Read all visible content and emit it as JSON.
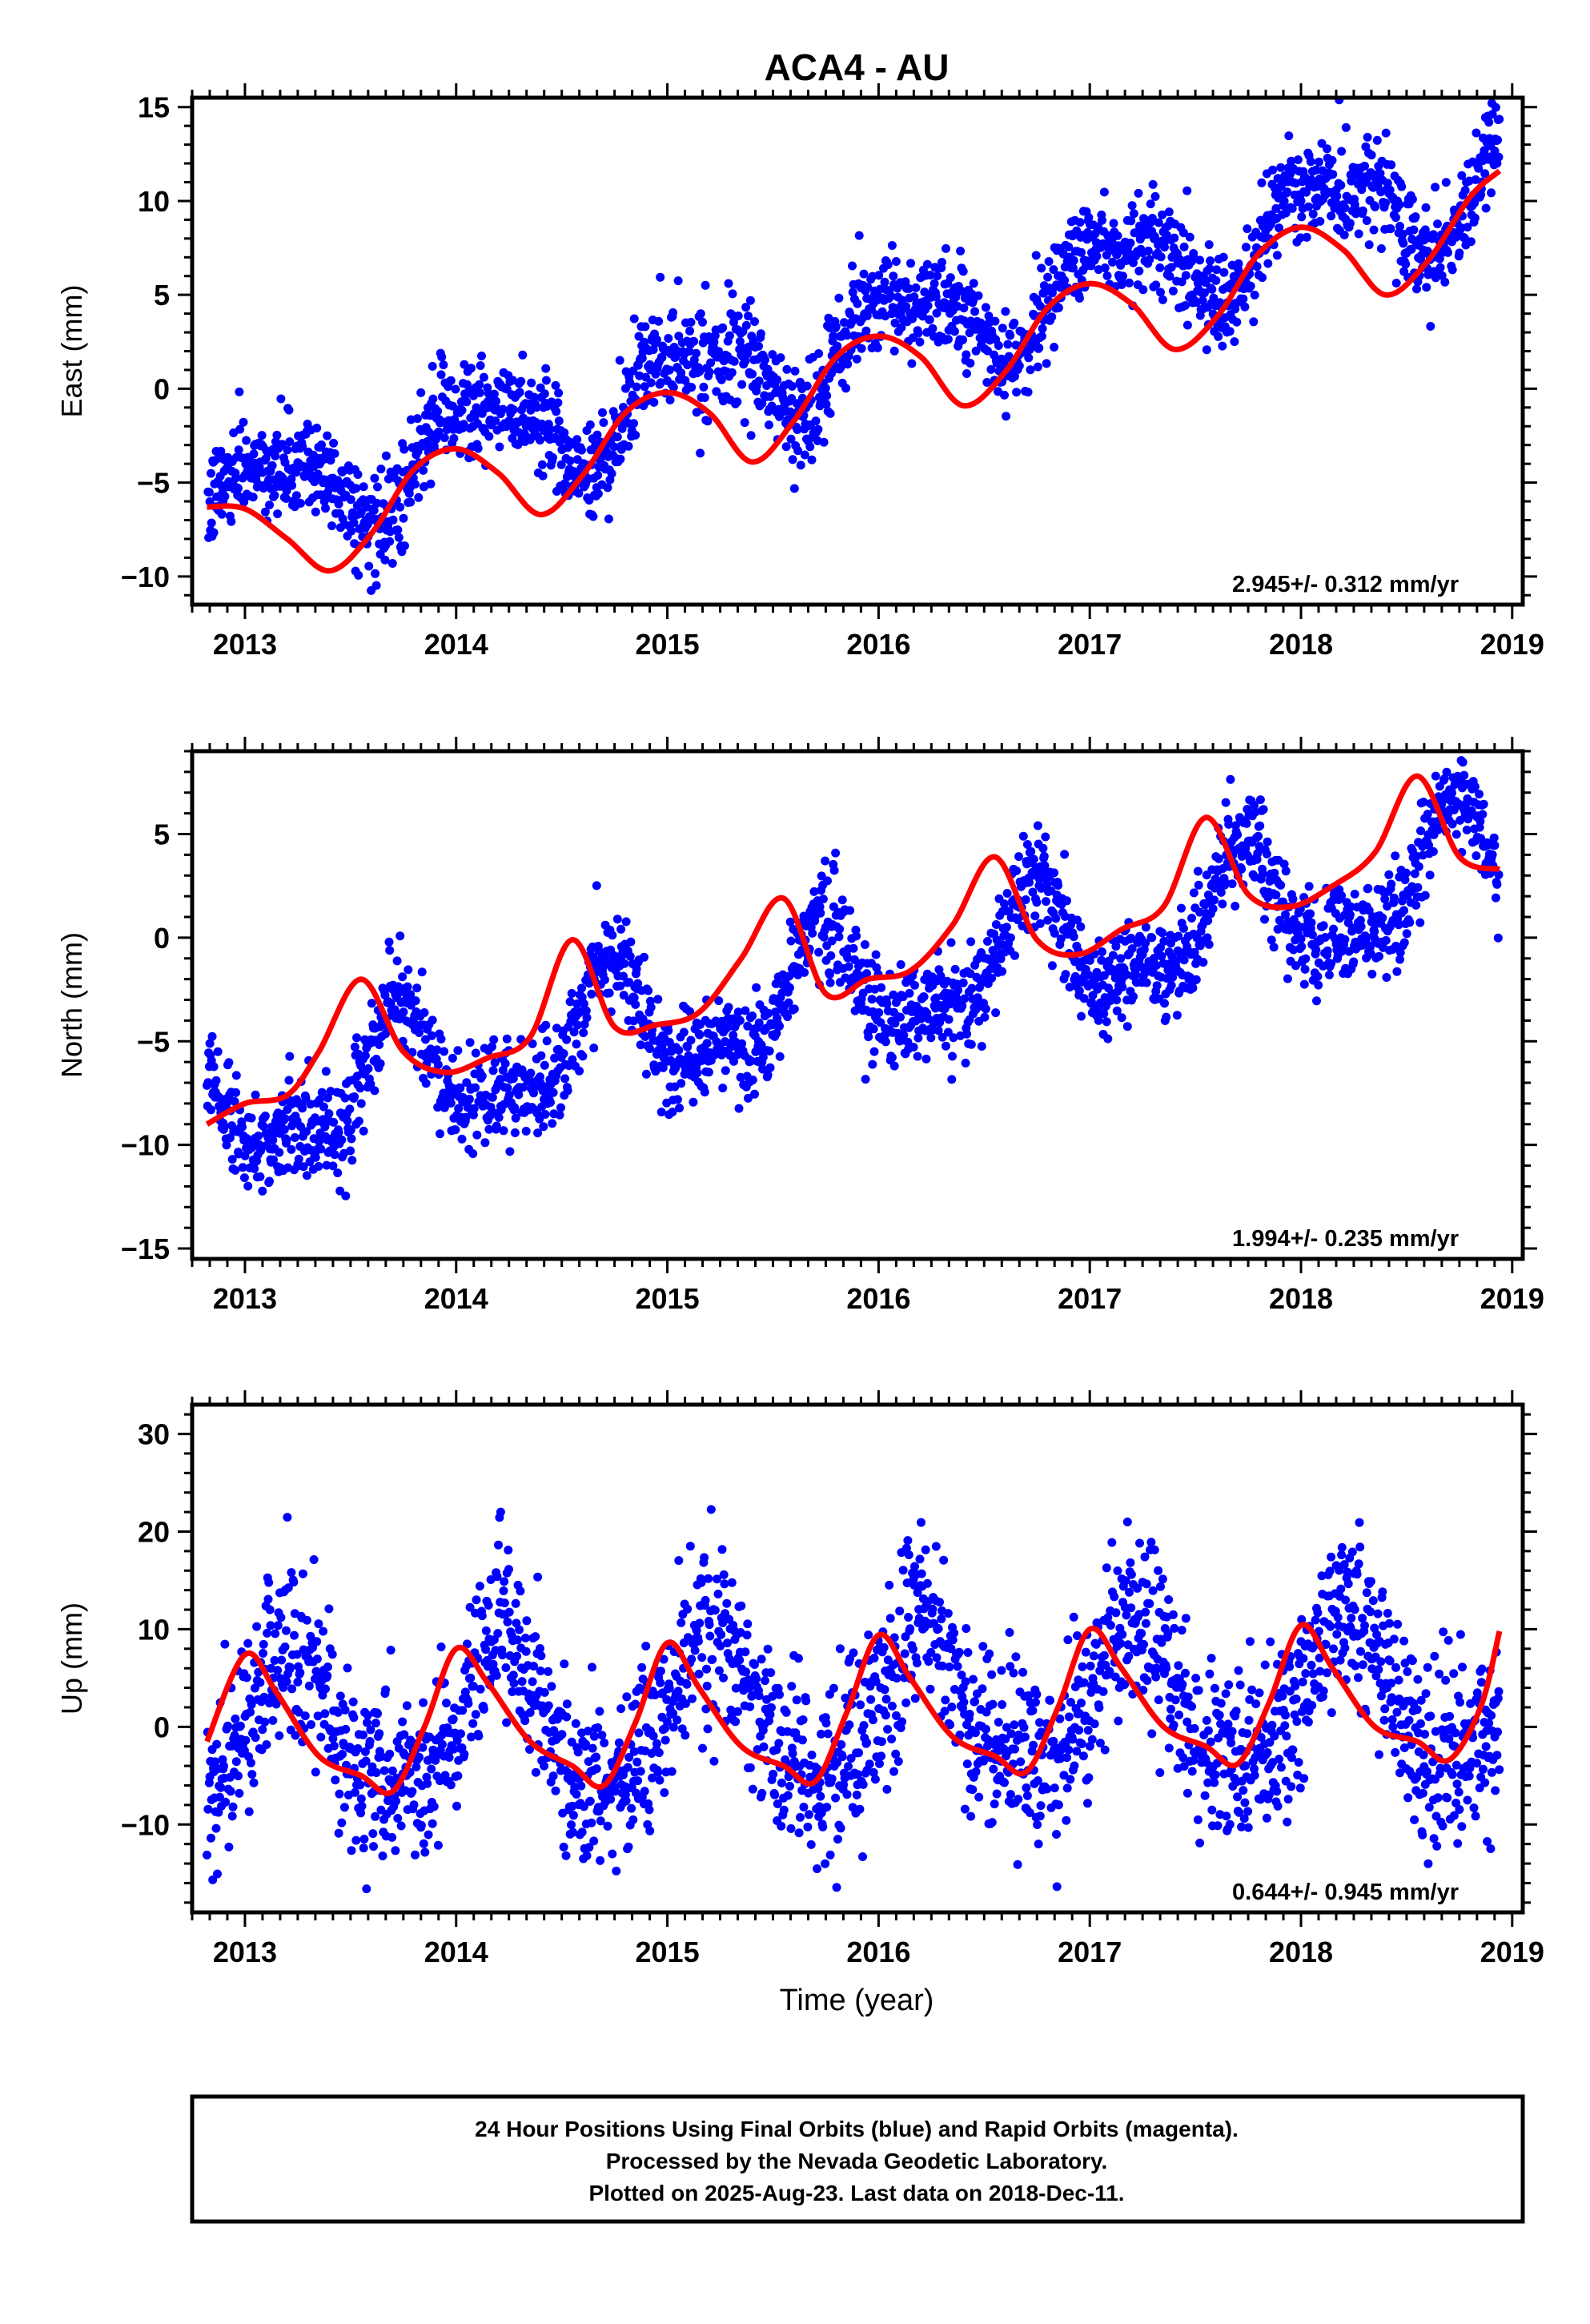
{
  "chart_data": [
    {
      "type": "scatter",
      "title": "ACA4 - AU",
      "ylabel": "East (mm)",
      "xlabel": "",
      "xlim": [
        2012.75,
        2019.05
      ],
      "ylim": [
        -11.5,
        15.5
      ],
      "xticks": [
        2013,
        2014,
        2015,
        2016,
        2017,
        2018,
        2019
      ],
      "yticks": [
        -10,
        -5,
        0,
        5,
        10,
        15
      ],
      "rate_text": "2.945+/- 0.312 mm/yr",
      "grid": false,
      "colors": {
        "points": "#0000ff",
        "model": "#ff0000"
      },
      "series": [
        {
          "kind": "points",
          "x_start": 2012.82,
          "x_end": 2018.94,
          "step_days": 1.0,
          "trend": {
            "t0": 2012.82,
            "y0": -6.6,
            "rate": 2.945
          },
          "seasonal": [
            [
              1.5,
              1.8
            ],
            [
              -0.9,
              0.3
            ]
          ],
          "noise_sd": 1.3
        },
        {
          "kind": "model",
          "x": [
            2012.82,
            2013.0,
            2013.2,
            2013.4,
            2013.6,
            2013.8,
            2014.0,
            2014.2,
            2014.4,
            2014.6,
            2014.8,
            2015.0,
            2015.2,
            2015.4,
            2015.6,
            2015.8,
            2016.0,
            2016.2,
            2016.4,
            2016.6,
            2016.8,
            2017.0,
            2017.2,
            2017.4,
            2017.6,
            2017.8,
            2018.0,
            2018.2,
            2018.4,
            2018.6,
            2018.8,
            2018.94
          ],
          "y": [
            -6.3,
            -6.4,
            -8.0,
            -9.7,
            -7.7,
            -4.3,
            -3.2,
            -4.5,
            -6.7,
            -4.6,
            -1.3,
            -0.2,
            -1.3,
            -3.9,
            -1.7,
            1.7,
            2.8,
            1.7,
            -0.9,
            0.9,
            4.3,
            5.6,
            4.5,
            2.1,
            3.8,
            7.2,
            8.6,
            7.4,
            5.0,
            6.8,
            10.2,
            11.6
          ]
        }
      ]
    },
    {
      "type": "scatter",
      "ylabel": "North (mm)",
      "xlabel": "",
      "xlim": [
        2012.75,
        2019.05
      ],
      "ylim": [
        -15.5,
        9.0
      ],
      "xticks": [
        2013,
        2014,
        2015,
        2016,
        2017,
        2018,
        2019
      ],
      "yticks": [
        -15,
        -10,
        -5,
        0,
        5
      ],
      "rate_text": "1.994+/- 0.235 mm/yr",
      "grid": false,
      "colors": {
        "points": "#0000ff",
        "model": "#ff0000"
      },
      "series": [
        {
          "kind": "points",
          "x_start": 2012.82,
          "x_end": 2018.94,
          "step_days": 1.0,
          "trend": {
            "t0": 2012.82,
            "y0": -8.7,
            "rate": 1.994
          },
          "seasonal": [
            [
              -2.6,
              -0.4
            ],
            [
              0.3,
              -1.2
            ]
          ],
          "noise_sd": 1.2
        },
        {
          "kind": "model",
          "x": [
            2012.82,
            2013.0,
            2013.2,
            2013.35,
            2013.55,
            2013.75,
            2013.95,
            2014.15,
            2014.35,
            2014.55,
            2014.75,
            2014.95,
            2015.15,
            2015.35,
            2015.55,
            2015.75,
            2015.95,
            2016.15,
            2016.35,
            2016.55,
            2016.75,
            2016.95,
            2017.15,
            2017.35,
            2017.55,
            2017.75,
            2017.95,
            2018.15,
            2018.35,
            2018.55,
            2018.75,
            2018.94
          ],
          "y": [
            -9.0,
            -8.0,
            -7.6,
            -5.5,
            -2.0,
            -5.5,
            -6.5,
            -5.8,
            -4.8,
            -0.1,
            -4.3,
            -4.2,
            -3.6,
            -1.0,
            1.9,
            -2.7,
            -2.0,
            -1.6,
            0.6,
            3.9,
            -0.1,
            -0.8,
            0.4,
            1.5,
            5.8,
            2.1,
            1.5,
            2.5,
            4.1,
            7.8,
            3.9,
            3.3
          ]
        }
      ]
    },
    {
      "type": "scatter",
      "ylabel": "Up (mm)",
      "xlabel": "Time (year)",
      "xlim": [
        2012.75,
        2019.05
      ],
      "ylim": [
        -19.0,
        33.0
      ],
      "xticks": [
        2013,
        2014,
        2015,
        2016,
        2017,
        2018,
        2019
      ],
      "yticks": [
        -10,
        0,
        10,
        20,
        30
      ],
      "rate_text": "0.644+/- 0.945 mm/yr",
      "grid": false,
      "colors": {
        "points": "#0000ff",
        "model": "#ff0000"
      },
      "series": [
        {
          "kind": "points",
          "x_start": 2012.82,
          "x_end": 2018.94,
          "step_days": 1.0,
          "trend": {
            "t0": 2012.82,
            "y0": -0.5,
            "rate": 0.644
          },
          "seasonal": [
            [
              7.0,
              1.5
            ],
            [
              0.8,
              -1.5
            ]
          ],
          "noise_sd": 4.5
        },
        {
          "kind": "model",
          "x": [
            2012.82,
            2013.0,
            2013.15,
            2013.35,
            2013.55,
            2013.7,
            2013.85,
            2014.0,
            2014.15,
            2014.35,
            2014.55,
            2014.7,
            2014.85,
            2015.0,
            2015.15,
            2015.35,
            2015.55,
            2015.7,
            2015.85,
            2016.0,
            2016.15,
            2016.35,
            2016.55,
            2016.7,
            2016.85,
            2017.0,
            2017.15,
            2017.35,
            2017.55,
            2017.7,
            2017.85,
            2018.0,
            2018.15,
            2018.35,
            2018.55,
            2018.7,
            2018.85,
            2018.94
          ],
          "y": [
            -1.5,
            7.4,
            3.5,
            -3.0,
            -5.0,
            -6.6,
            0.0,
            8.0,
            4.5,
            -1.5,
            -4.0,
            -6.0,
            0.5,
            8.6,
            4.0,
            -2.0,
            -4.0,
            -5.6,
            1.5,
            9.4,
            5.0,
            -1.0,
            -3.0,
            -4.6,
            2.0,
            10.0,
            6.0,
            0.0,
            -2.0,
            -3.8,
            2.5,
            10.4,
            6.0,
            0.0,
            -1.5,
            -3.4,
            2.0,
            9.8
          ]
        }
      ]
    }
  ],
  "footer": {
    "line1": "24 Hour Positions Using Final Orbits (blue) and Rapid Orbits (magenta).",
    "line2": "Processed by the Nevada Geodetic Laboratory.",
    "line3": "Plotted on 2025-Aug-23. Last data on 2018-Dec-11."
  }
}
